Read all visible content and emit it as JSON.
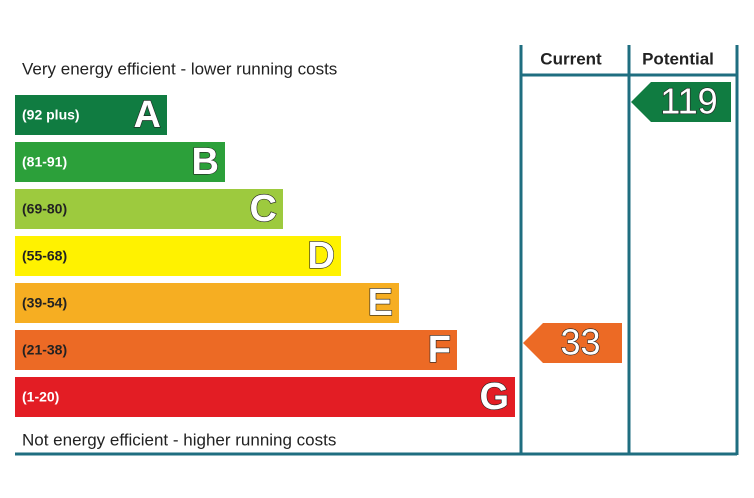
{
  "top_note": "Very energy efficient - lower running costs",
  "bottom_note": "Not energy efficient - higher running costs",
  "bands": [
    {
      "range": "(92 plus)",
      "letter": "A",
      "color": "#107c41",
      "label_color": "#ffffff"
    },
    {
      "range": "(81-91)",
      "letter": "B",
      "color": "#2ca03a",
      "label_color": "#ffffff"
    },
    {
      "range": "(69-80)",
      "letter": "C",
      "color": "#9dca3e",
      "label_color": "#222222"
    },
    {
      "range": "(55-68)",
      "letter": "D",
      "color": "#fff200",
      "label_color": "#222222"
    },
    {
      "range": "(39-54)",
      "letter": "E",
      "color": "#f6ae22",
      "label_color": "#222222"
    },
    {
      "range": "(21-38)",
      "letter": "F",
      "color": "#ec6a25",
      "label_color": "#222222"
    },
    {
      "range": "(1-20)",
      "letter": "G",
      "color": "#e31d24",
      "label_color": "#ffffff"
    }
  ],
  "current": {
    "header": "Current",
    "value": 33
  },
  "potential": {
    "header": "Potential",
    "value": 119
  }
}
